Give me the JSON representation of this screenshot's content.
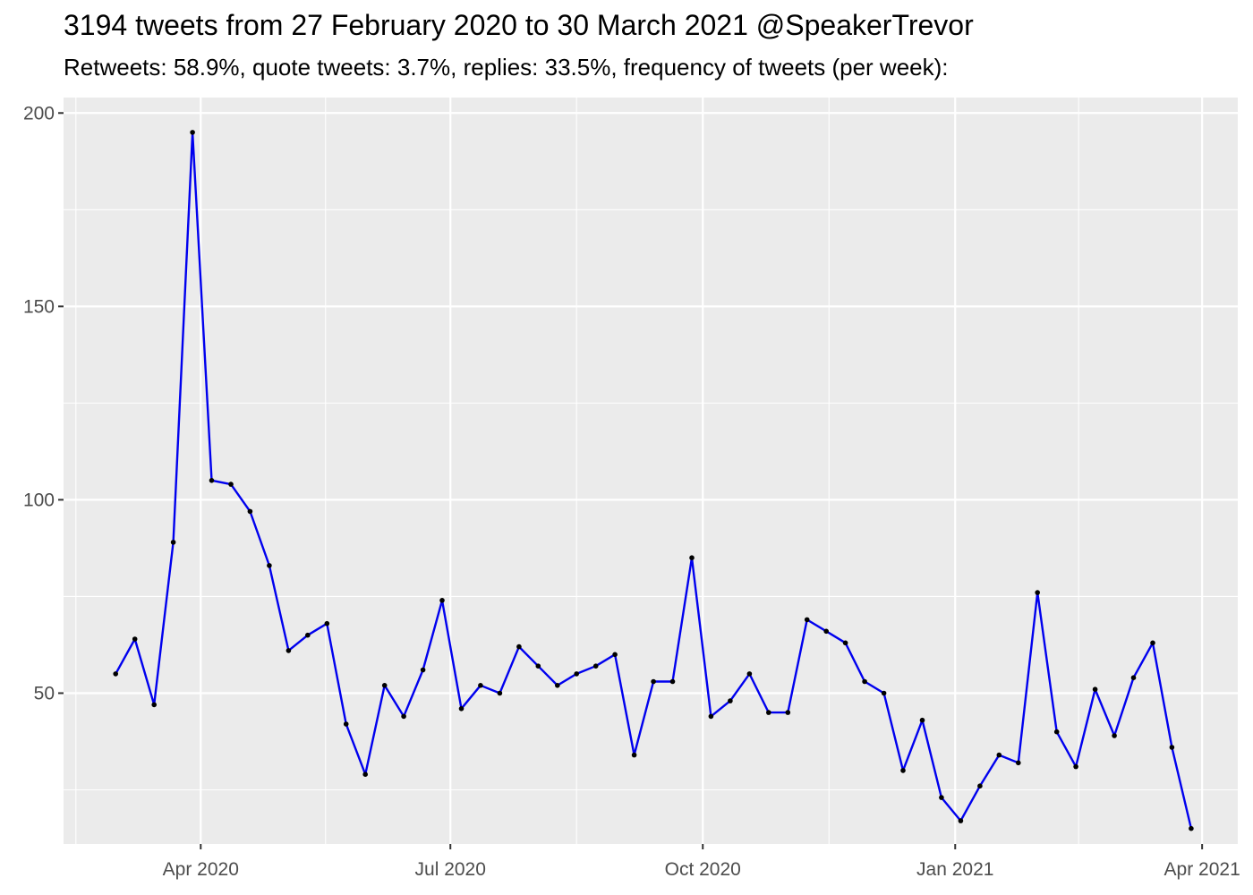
{
  "chart_data": {
    "type": "line",
    "title": "3194 tweets from 27 February 2020 to 30 March 2021 @SpeakerTrevor",
    "subtitle": "Retweets: 58.9%, quote tweets: 3.7%, replies: 33.5%, frequency of tweets (per week):",
    "xlabel": "",
    "ylabel": "",
    "x_ticks": [
      {
        "label": "Apr 2020",
        "date": "2020-04-01"
      },
      {
        "label": "Jul 2020",
        "date": "2020-07-01"
      },
      {
        "label": "Oct 2020",
        "date": "2020-10-01"
      },
      {
        "label": "Jan 2021",
        "date": "2021-01-01"
      },
      {
        "label": "Apr 2021",
        "date": "2021-04-01"
      }
    ],
    "y_ticks": [
      50,
      100,
      150,
      200
    ],
    "ylim": [
      11,
      204
    ],
    "xlim": [
      "2020-02-11",
      "2021-04-14"
    ],
    "grid": true,
    "line_color": "#0000ee",
    "point_color": "#000000",
    "panel_background": "#ebebeb",
    "series": [
      {
        "x": [
          "2020-03-01",
          "2020-03-08",
          "2020-03-15",
          "2020-03-22",
          "2020-03-29",
          "2020-04-05",
          "2020-04-12",
          "2020-04-19",
          "2020-04-26",
          "2020-05-03",
          "2020-05-10",
          "2020-05-17",
          "2020-05-24",
          "2020-05-31",
          "2020-06-07",
          "2020-06-14",
          "2020-06-21",
          "2020-06-28",
          "2020-07-05",
          "2020-07-12",
          "2020-07-19",
          "2020-07-26",
          "2020-08-02",
          "2020-08-09",
          "2020-08-16",
          "2020-08-23",
          "2020-08-30",
          "2020-09-06",
          "2020-09-13",
          "2020-09-20",
          "2020-09-27",
          "2020-10-04",
          "2020-10-11",
          "2020-10-18",
          "2020-10-25",
          "2020-11-01",
          "2020-11-08",
          "2020-11-15",
          "2020-11-22",
          "2020-11-29",
          "2020-12-06",
          "2020-12-13",
          "2020-12-20",
          "2020-12-27",
          "2021-01-03",
          "2021-01-10",
          "2021-01-17",
          "2021-01-24",
          "2021-01-31",
          "2021-02-07",
          "2021-02-14",
          "2021-02-21",
          "2021-02-28",
          "2021-03-07",
          "2021-03-14",
          "2021-03-21",
          "2021-03-28"
        ],
        "values": [
          55,
          64,
          47,
          89,
          195,
          105,
          104,
          97,
          83,
          61,
          65,
          68,
          42,
          29,
          52,
          44,
          56,
          74,
          46,
          52,
          50,
          62,
          57,
          52,
          55,
          57,
          60,
          34,
          53,
          53,
          85,
          44,
          48,
          55,
          45,
          45,
          69,
          66,
          63,
          53,
          50,
          30,
          43,
          23,
          17,
          26,
          34,
          32,
          76,
          40,
          31,
          51,
          39,
          54,
          63,
          36,
          15
        ]
      }
    ]
  }
}
